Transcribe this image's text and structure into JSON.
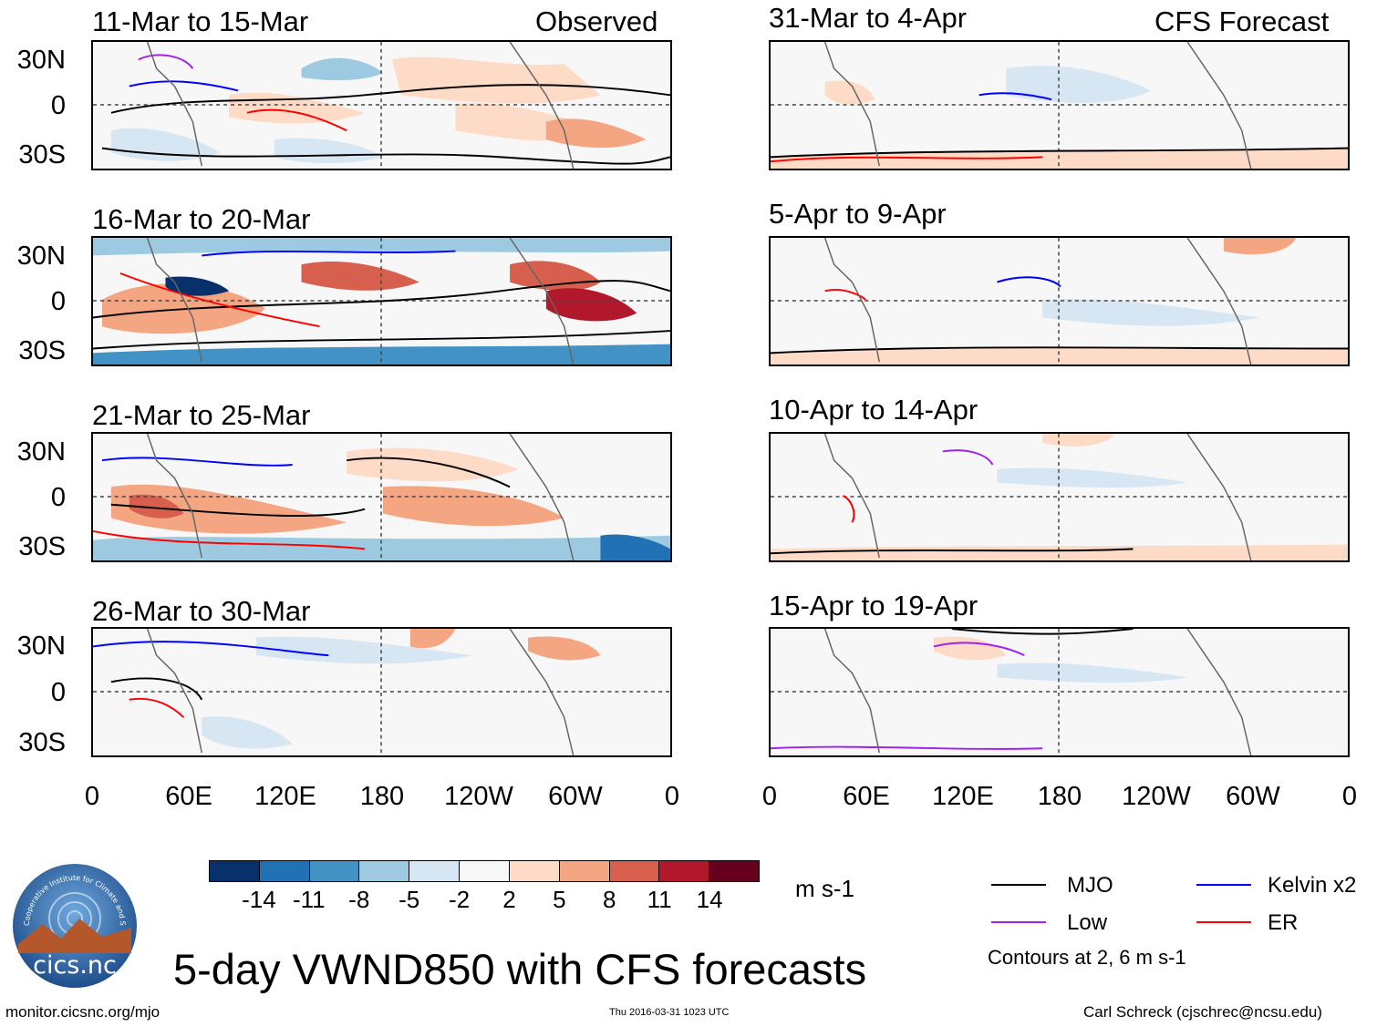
{
  "left_column": {
    "tag": "Observed",
    "panels": [
      {
        "title": "11-Mar to 15-Mar"
      },
      {
        "title": "16-Mar to 20-Mar"
      },
      {
        "title": "21-Mar to 25-Mar"
      },
      {
        "title": "26-Mar to 30-Mar"
      }
    ]
  },
  "right_column": {
    "tag": "CFS Forecast",
    "panels": [
      {
        "title": "31-Mar to 4-Apr"
      },
      {
        "title": "5-Apr to 9-Apr"
      },
      {
        "title": "10-Apr to 14-Apr"
      },
      {
        "title": "15-Apr to 19-Apr"
      }
    ]
  },
  "lat_labels": [
    "30N",
    "0",
    "30S"
  ],
  "lon_labels": [
    "0",
    "60E",
    "120E",
    "180",
    "120W",
    "60W",
    "0"
  ],
  "colorbar": {
    "colors": [
      "#08306b",
      "#2171b5",
      "#4292c6",
      "#9ecae1",
      "#d6e6f2",
      "#f7f7f7",
      "#fddbc7",
      "#f4a582",
      "#d6604d",
      "#b2182b",
      "#67001f"
    ],
    "tick_labels": [
      "-14",
      "-11",
      "-8",
      "-5",
      "-2",
      "2",
      "5",
      "8",
      "11",
      "14"
    ],
    "units": "m s-1"
  },
  "legend": {
    "items": [
      {
        "label": "MJO",
        "color": "#000000"
      },
      {
        "label": "Kelvin x2",
        "color": "#0000ff"
      },
      {
        "label": "Low",
        "color": "#a020f0"
      },
      {
        "label": "ER",
        "color": "#ff0000"
      }
    ],
    "note": "Contours at 2, 6 m s-1"
  },
  "logo_text": "cics.nc",
  "logo_ring_text": "Cooperative Institute for Climate and Satellites",
  "main_title": "5-day VWND850 with CFS forecasts",
  "footer": {
    "left": "monitor.cicsnc.org/mjo",
    "center": "Thu 2016-03-31 1023 UTC",
    "right": "Carl Schreck (cjschrec@ncsu.edu)"
  }
}
